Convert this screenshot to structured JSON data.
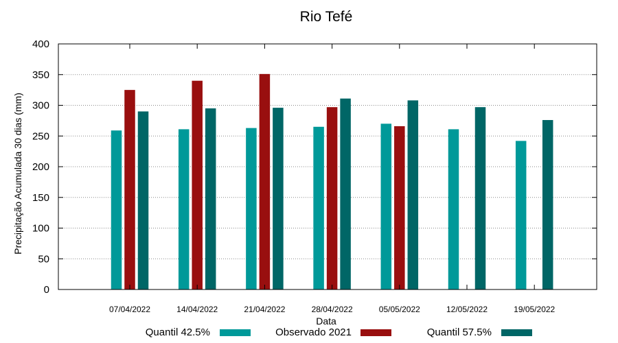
{
  "chart_data": {
    "type": "bar",
    "title": "Rio Tefé",
    "xlabel": "Data",
    "ylabel": "Precipitação Acumulada 30 dias (mm)",
    "ylim": [
      0,
      400
    ],
    "yticks": [
      0,
      50,
      100,
      150,
      200,
      250,
      300,
      350,
      400
    ],
    "grid": true,
    "legend_position": "bottom",
    "categories": [
      "07/04/2022",
      "14/04/2022",
      "21/04/2022",
      "28/04/2022",
      "05/05/2022",
      "12/05/2022",
      "19/05/2022"
    ],
    "series": [
      {
        "name": "Quantil 42.5%",
        "color": "#009999",
        "values": [
          259,
          261,
          263,
          265,
          270,
          261,
          242
        ]
      },
      {
        "name": "Observado 2021",
        "color": "#990f0f",
        "values": [
          325,
          340,
          351,
          297,
          266,
          null,
          null
        ]
      },
      {
        "name": "Quantil 57.5%",
        "color": "#006666",
        "values": [
          290,
          295,
          296,
          311,
          308,
          297,
          276
        ]
      }
    ]
  }
}
